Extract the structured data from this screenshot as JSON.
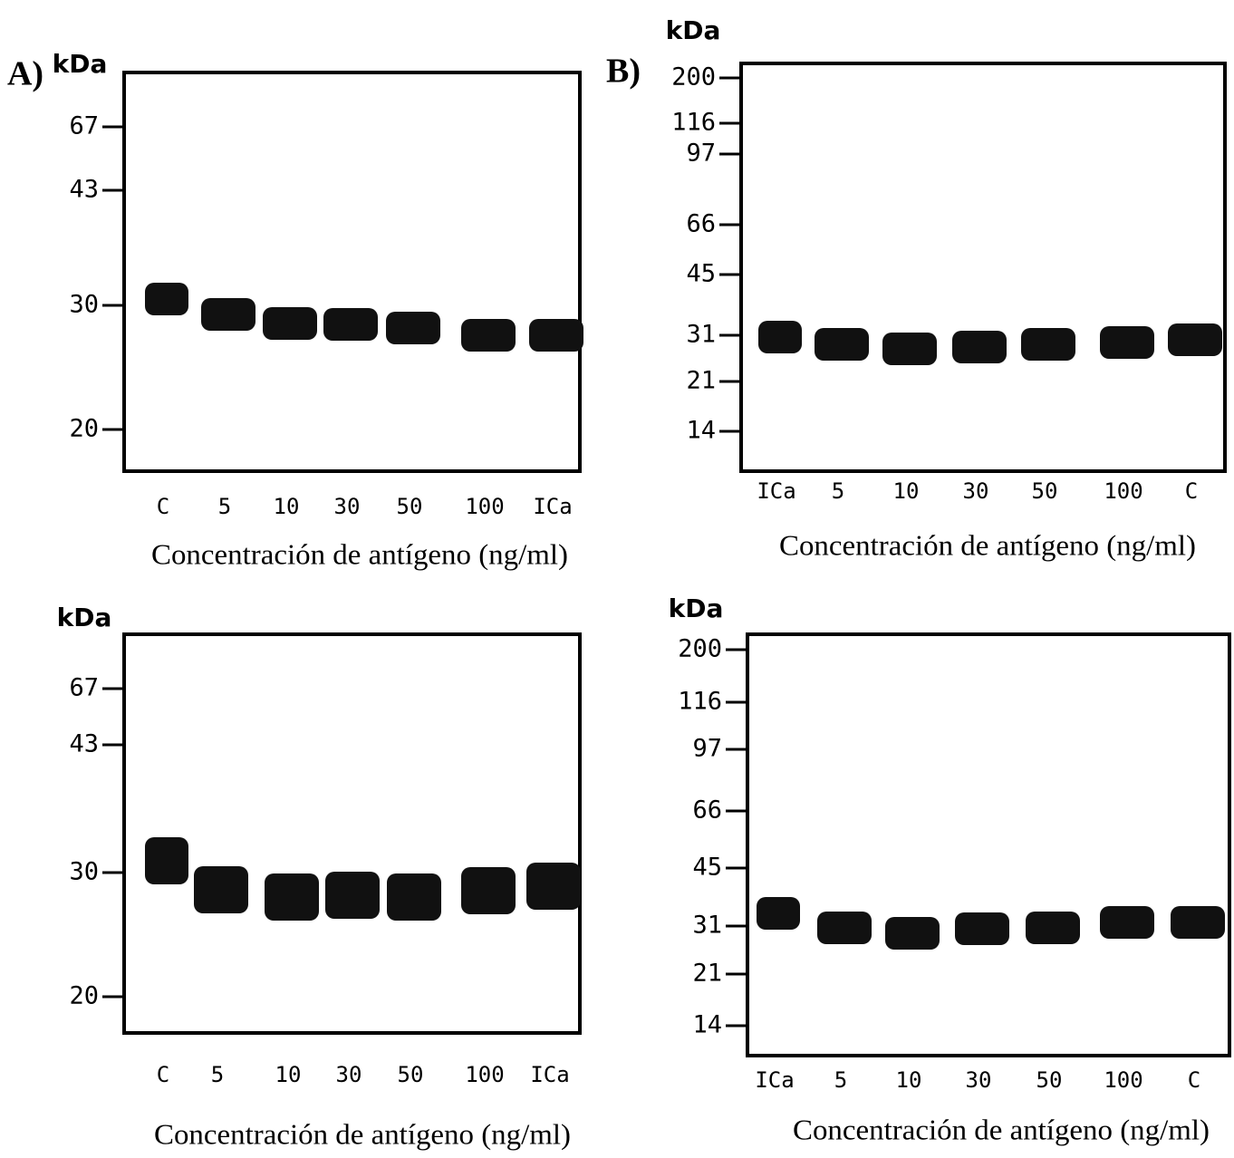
{
  "figure": {
    "panels": [
      {
        "label": "A)",
        "unit": "kDa",
        "markers": [
          "67",
          "43",
          "30",
          "20"
        ],
        "lanes": [
          "C",
          "5",
          "10",
          "30",
          "50",
          "100",
          "ICa"
        ],
        "xlabel": "Concentración de antígeno (ng/ml)"
      },
      {
        "label": "B)",
        "unit": "kDa",
        "markers": [
          "200",
          "116",
          "97",
          "66",
          "45",
          "31",
          "21",
          "14"
        ],
        "lanes": [
          "ICa",
          "5",
          "10",
          "30",
          "50",
          "100",
          "C"
        ],
        "xlabel": "Concentración de antígeno (ng/ml)"
      },
      {
        "unit": "kDa",
        "markers": [
          "67",
          "43",
          "30",
          "20"
        ],
        "lanes": [
          "C",
          "5",
          "10",
          "30",
          "50",
          "100",
          "ICa"
        ],
        "xlabel": "Concentración de antígeno (ng/ml)"
      },
      {
        "unit": "kDa",
        "markers": [
          "200",
          "116",
          "97",
          "66",
          "45",
          "31",
          "21",
          "14"
        ],
        "lanes": [
          "ICa",
          "5",
          "10",
          "30",
          "50",
          "100",
          "C"
        ],
        "xlabel": "Concentración de antígeno (ng/ml)"
      }
    ]
  }
}
